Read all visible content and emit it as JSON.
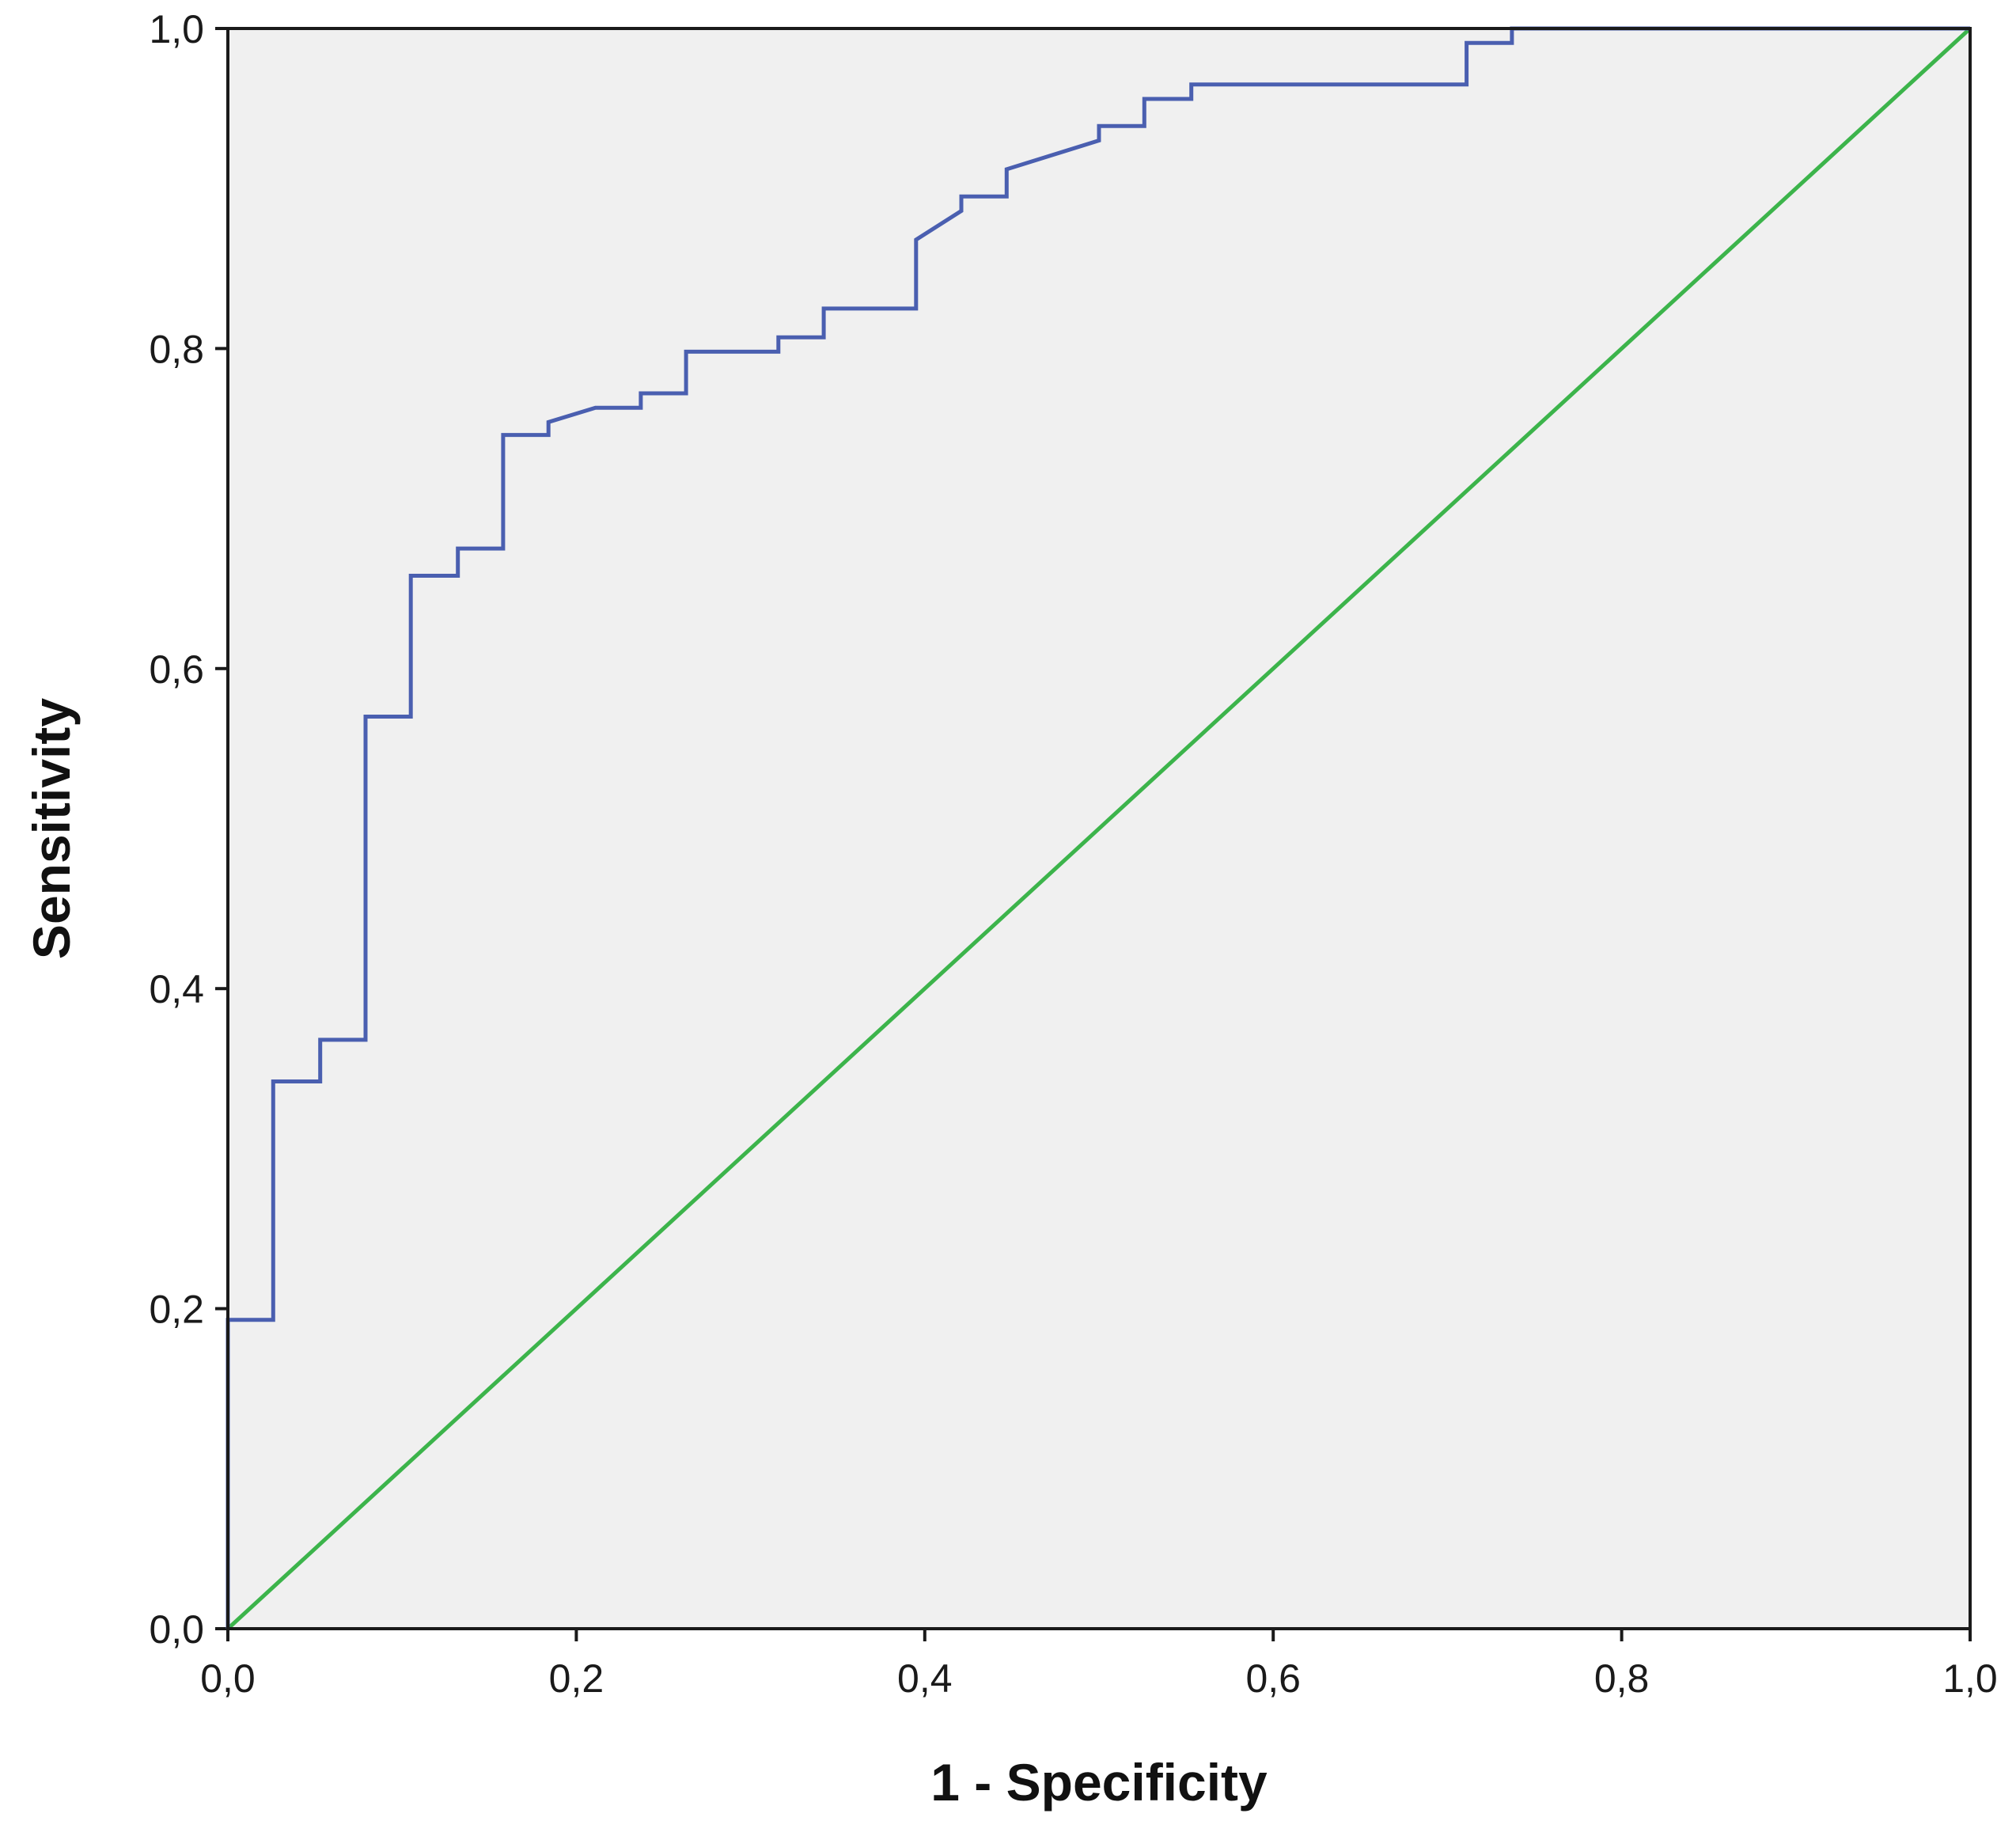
{
  "chart_data": {
    "type": "line",
    "title": "",
    "xlabel": "1 - Specificity",
    "ylabel": "Sensitivity",
    "xlim": [
      0,
      1
    ],
    "ylim": [
      0,
      1
    ],
    "x_ticks": [
      "0,0",
      "0,2",
      "0,4",
      "0,6",
      "0,8",
      "1,0"
    ],
    "y_ticks": [
      "0,0",
      "0,2",
      "0,4",
      "0,6",
      "0,8",
      "1,0"
    ],
    "x_tick_values": [
      0,
      0.2,
      0.4,
      0.6,
      0.8,
      1.0
    ],
    "y_tick_values": [
      0,
      0.2,
      0.4,
      0.6,
      0.8,
      1.0
    ],
    "grid": false,
    "legend": "none",
    "plot_background": "#f0f0f0",
    "series": [
      {
        "role": "roc-curve",
        "color": "#4a5fb0",
        "x": [
          0.0,
          0.0,
          0.026,
          0.026,
          0.053,
          0.053,
          0.079,
          0.079,
          0.105,
          0.105,
          0.132,
          0.132,
          0.158,
          0.158,
          0.184,
          0.184,
          0.211,
          0.237,
          0.237,
          0.263,
          0.263,
          0.316,
          0.316,
          0.342,
          0.342,
          0.395,
          0.395,
          0.421,
          0.421,
          0.447,
          0.447,
          0.5,
          0.5,
          0.526,
          0.526,
          0.553,
          0.553,
          0.711,
          0.711,
          0.737,
          0.737,
          1.0
        ],
        "y": [
          0.0,
          0.193,
          0.193,
          0.342,
          0.342,
          0.368,
          0.368,
          0.57,
          0.57,
          0.658,
          0.658,
          0.675,
          0.675,
          0.746,
          0.746,
          0.754,
          0.763,
          0.763,
          0.772,
          0.772,
          0.798,
          0.798,
          0.807,
          0.807,
          0.825,
          0.825,
          0.868,
          0.886,
          0.895,
          0.895,
          0.912,
          0.93,
          0.939,
          0.939,
          0.956,
          0.956,
          0.965,
          0.965,
          0.991,
          0.991,
          1.0,
          1.0
        ]
      },
      {
        "role": "reference-line",
        "color": "#3cb44b",
        "x": [
          0,
          1
        ],
        "y": [
          0,
          1
        ]
      }
    ]
  }
}
